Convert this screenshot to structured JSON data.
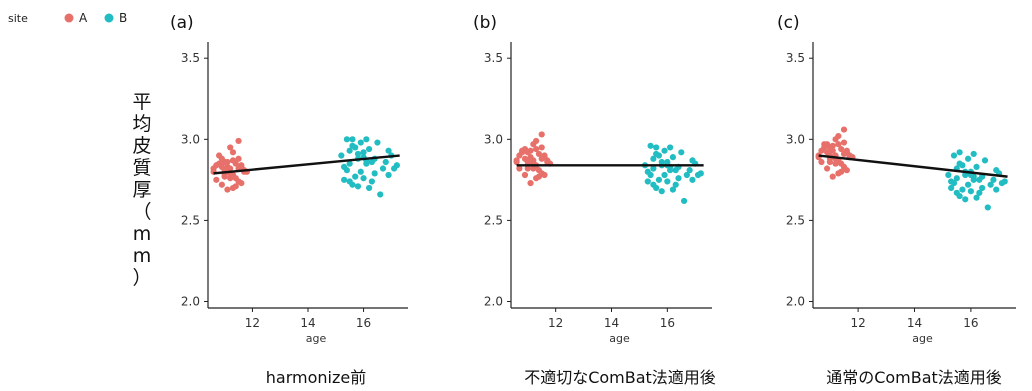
{
  "legend": {
    "title": "site",
    "placement": "top-left",
    "entries": [
      {
        "label": "A",
        "color": "#E8706A"
      },
      {
        "label": "B",
        "color": "#22BDC2"
      }
    ]
  },
  "ylabel_vertical": "平均皮質厚（mm）",
  "chart_data": [
    {
      "type": "scatter",
      "panel_label": "(a)",
      "caption": "harmonize前",
      "xlabel": "age",
      "ylabel": "平均皮質厚（mm）",
      "xlim": [
        10.4,
        17.6
      ],
      "ylim": [
        1.96,
        3.6
      ],
      "xticks": [
        12,
        14,
        16
      ],
      "yticks": [
        2.0,
        2.5,
        3.0,
        3.5
      ],
      "grid": false,
      "series": [
        {
          "name": "A",
          "color": "#E8706A",
          "x": [
            10.6,
            10.7,
            10.8,
            10.9,
            11.0,
            11.1,
            11.2,
            11.3,
            11.4,
            11.5,
            11.6,
            11.7,
            10.8,
            10.9,
            11.0,
            11.2,
            11.3,
            11.5,
            11.6,
            11.8,
            10.7,
            11.0,
            11.1,
            11.3,
            11.4,
            11.6,
            11.2,
            11.5,
            11.0,
            11.3,
            10.9,
            11.4,
            11.7,
            11.1,
            11.2,
            10.6,
            11.5
          ],
          "y": [
            2.8,
            2.75,
            2.85,
            2.83,
            2.78,
            2.86,
            2.82,
            2.7,
            2.76,
            2.88,
            2.84,
            2.8,
            2.9,
            2.72,
            2.81,
            2.79,
            2.87,
            2.74,
            2.83,
            2.8,
            2.84,
            2.77,
            2.69,
            2.92,
            2.85,
            2.73,
            2.95,
            2.82,
            2.86,
            2.78,
            2.88,
            2.71,
            2.81,
            2.83,
            2.76,
            2.82,
            2.99
          ]
        },
        {
          "name": "B",
          "color": "#22BDC2",
          "x": [
            15.2,
            15.3,
            15.4,
            15.5,
            15.6,
            15.7,
            15.8,
            15.9,
            16.0,
            16.1,
            16.2,
            16.3,
            16.5,
            16.7,
            16.9,
            17.0,
            17.2,
            15.3,
            15.5,
            15.7,
            15.9,
            16.1,
            16.3,
            16.6,
            15.4,
            15.6,
            15.8,
            16.0,
            16.2,
            16.4,
            16.8,
            17.1,
            15.5,
            15.8,
            16.1,
            16.4,
            16.9,
            16.0,
            15.6
          ],
          "y": [
            2.9,
            2.75,
            3.0,
            2.85,
            2.72,
            2.95,
            2.88,
            2.8,
            2.92,
            3.0,
            2.7,
            2.86,
            2.98,
            2.82,
            2.78,
            2.9,
            2.84,
            2.83,
            2.93,
            2.77,
            2.98,
            2.87,
            2.74,
            2.66,
            2.81,
            2.96,
            2.71,
            2.89,
            2.94,
            2.79,
            2.86,
            2.82,
            2.74,
            2.91,
            2.85,
            2.88,
            2.93,
            2.76,
            3.0
          ]
        }
      ],
      "fit_line": {
        "x": [
          10.6,
          17.3
        ],
        "y": [
          2.79,
          2.9
        ]
      }
    },
    {
      "type": "scatter",
      "panel_label": "(b)",
      "caption": "不適切なComBat法適用後",
      "xlabel": "age",
      "ylabel": "",
      "xlim": [
        10.4,
        17.6
      ],
      "ylim": [
        1.96,
        3.6
      ],
      "xticks": [
        12,
        14,
        16
      ],
      "yticks": [
        2.0,
        2.5,
        3.0,
        3.5
      ],
      "grid": false,
      "series": [
        {
          "name": "A",
          "color": "#E8706A",
          "x": [
            10.6,
            10.7,
            10.8,
            10.9,
            11.0,
            11.1,
            11.2,
            11.3,
            11.4,
            11.5,
            11.6,
            11.7,
            10.8,
            10.9,
            11.0,
            11.2,
            11.3,
            11.5,
            11.6,
            11.8,
            10.7,
            11.0,
            11.1,
            11.3,
            11.4,
            11.6,
            11.2,
            11.5,
            11.0,
            11.3,
            10.9,
            11.4,
            11.7,
            11.1,
            11.2,
            10.6,
            11.5
          ],
          "y": [
            2.87,
            2.82,
            2.92,
            2.88,
            2.84,
            2.93,
            2.87,
            2.76,
            2.81,
            2.95,
            2.9,
            2.86,
            2.93,
            2.78,
            2.86,
            2.85,
            2.94,
            2.79,
            2.89,
            2.85,
            2.9,
            2.82,
            2.73,
            2.99,
            2.91,
            2.78,
            2.97,
            2.88,
            2.92,
            2.84,
            2.94,
            2.77,
            2.87,
            2.89,
            2.82,
            2.86,
            3.03
          ]
        },
        {
          "name": "B",
          "color": "#22BDC2",
          "x": [
            15.2,
            15.3,
            15.4,
            15.5,
            15.6,
            15.7,
            15.8,
            15.9,
            16.0,
            16.1,
            16.2,
            16.3,
            16.5,
            16.7,
            16.9,
            17.0,
            17.2,
            15.3,
            15.5,
            15.7,
            15.9,
            16.1,
            16.3,
            16.6,
            15.4,
            15.6,
            15.8,
            16.0,
            16.2,
            16.4,
            16.8,
            17.1,
            15.5,
            15.8,
            16.1,
            16.4,
            16.9,
            16.0,
            15.6
          ],
          "y": [
            2.84,
            2.74,
            2.96,
            2.82,
            2.7,
            2.9,
            2.84,
            2.78,
            2.86,
            2.95,
            2.69,
            2.81,
            2.92,
            2.78,
            2.75,
            2.85,
            2.79,
            2.8,
            2.88,
            2.75,
            2.93,
            2.83,
            2.72,
            2.62,
            2.78,
            2.91,
            2.68,
            2.84,
            2.89,
            2.76,
            2.81,
            2.78,
            2.72,
            2.86,
            2.81,
            2.83,
            2.87,
            2.74,
            2.95
          ]
        }
      ],
      "fit_line": {
        "x": [
          10.6,
          17.3
        ],
        "y": [
          2.84,
          2.84
        ]
      }
    },
    {
      "type": "scatter",
      "panel_label": "(c)",
      "caption": "通常のComBat法適用後",
      "xlabel": "age",
      "ylabel": "",
      "xlim": [
        10.4,
        17.6
      ],
      "ylim": [
        1.96,
        3.6
      ],
      "xticks": [
        12,
        14,
        16
      ],
      "yticks": [
        2.0,
        2.5,
        3.0,
        3.5
      ],
      "grid": false,
      "series": [
        {
          "name": "A",
          "color": "#E8706A",
          "x": [
            10.6,
            10.7,
            10.8,
            10.9,
            11.0,
            11.1,
            11.2,
            11.3,
            11.4,
            11.5,
            11.6,
            11.7,
            10.8,
            10.9,
            11.0,
            11.2,
            11.3,
            11.5,
            11.6,
            11.8,
            10.7,
            11.0,
            11.1,
            11.3,
            11.4,
            11.6,
            11.2,
            11.5,
            11.0,
            11.3,
            10.9,
            11.4,
            11.7,
            11.1,
            11.2,
            10.6,
            11.5
          ],
          "y": [
            2.9,
            2.86,
            2.95,
            2.92,
            2.88,
            2.96,
            2.9,
            2.79,
            2.85,
            2.98,
            2.93,
            2.89,
            2.97,
            2.82,
            2.9,
            2.88,
            2.97,
            2.83,
            2.92,
            2.89,
            2.93,
            2.86,
            2.77,
            3.02,
            2.94,
            2.81,
            3.0,
            2.91,
            2.95,
            2.87,
            2.97,
            2.8,
            2.9,
            2.93,
            2.85,
            2.89,
            3.06
          ]
        },
        {
          "name": "B",
          "color": "#22BDC2",
          "x": [
            15.2,
            15.3,
            15.4,
            15.5,
            15.6,
            15.7,
            15.8,
            15.9,
            16.0,
            16.1,
            16.2,
            16.3,
            16.5,
            16.7,
            16.9,
            17.0,
            17.2,
            15.3,
            15.5,
            15.7,
            15.9,
            16.1,
            16.3,
            16.6,
            15.4,
            15.6,
            15.8,
            16.0,
            16.2,
            16.4,
            16.8,
            17.1,
            15.5,
            15.8,
            16.1,
            16.4,
            16.9,
            16.0,
            15.6
          ],
          "y": [
            2.78,
            2.7,
            2.9,
            2.76,
            2.65,
            2.84,
            2.78,
            2.72,
            2.8,
            2.91,
            2.64,
            2.75,
            2.87,
            2.72,
            2.69,
            2.79,
            2.74,
            2.74,
            2.82,
            2.69,
            2.88,
            2.77,
            2.67,
            2.58,
            2.73,
            2.85,
            2.63,
            2.78,
            2.83,
            2.7,
            2.75,
            2.73,
            2.67,
            2.8,
            2.75,
            2.77,
            2.81,
            2.68,
            2.92
          ]
        }
      ],
      "fit_line": {
        "x": [
          10.6,
          17.3
        ],
        "y": [
          2.9,
          2.77
        ]
      }
    }
  ]
}
